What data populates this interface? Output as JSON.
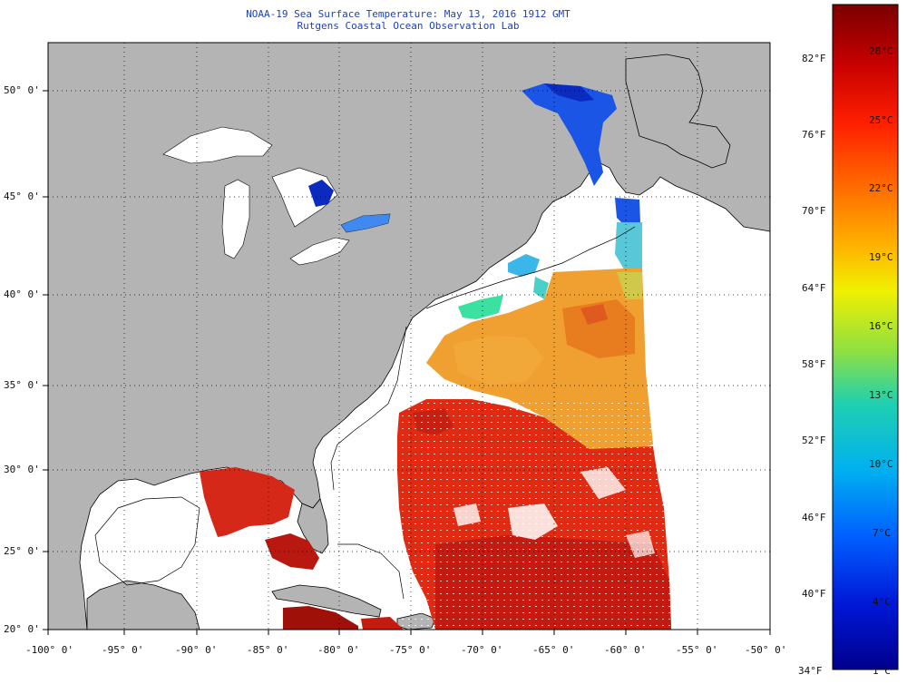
{
  "title": {
    "line1": "NOAA-19 Sea Surface Temperature:  May 13, 2016 1912 GMT",
    "line2": "Rutgens Coastal Ocean Observation Lab"
  },
  "map": {
    "lon_labels": [
      "-100° 0'",
      "-95° 0'",
      "-90° 0'",
      "-85° 0'",
      "-80° 0'",
      "-75° 0'",
      "-70° 0'",
      "-65° 0'",
      "-60° 0'",
      "-55° 0'",
      "-50° 0'"
    ],
    "lat_labels": [
      "50° 0'",
      "45° 0'",
      "40° 0'",
      "35° 0'",
      "30° 0'",
      "25° 0'",
      "20° 0'"
    ],
    "land_color": "#b4b4b4",
    "ocean_nodata_color": "#ffffff"
  },
  "colorbar": {
    "f_labels": [
      "82°F",
      "76°F",
      "70°F",
      "64°F",
      "58°F",
      "52°F",
      "46°F",
      "40°F",
      "34°F"
    ],
    "c_labels": [
      "28°C",
      "25°C",
      "22°C",
      "19°C",
      "16°C",
      "13°C",
      "10°C",
      "7°C",
      "4°C",
      "1°C"
    ],
    "colors_top_to_bottom": [
      "#7a0000",
      "#c80000",
      "#ff2000",
      "#ff7000",
      "#ffb000",
      "#f0f000",
      "#90e040",
      "#20d0b0",
      "#00b0f0",
      "#0060ff",
      "#0018d8",
      "#00008c"
    ]
  }
}
